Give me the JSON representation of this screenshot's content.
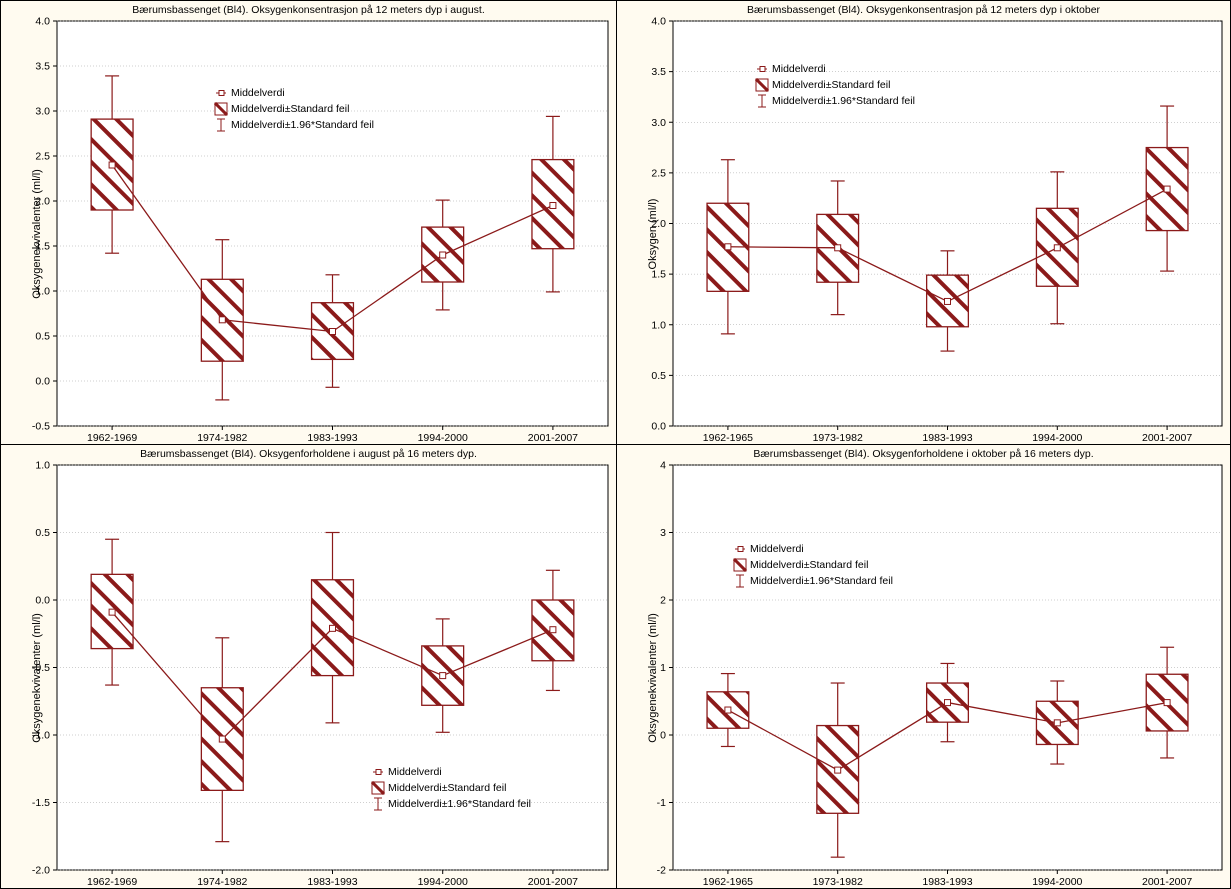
{
  "legend_labels": {
    "mean": "Middelverdi",
    "se": "Middelverdi±Standard feil",
    "ci": "Middelverdi±1.96*Standard feil"
  },
  "colors": {
    "series": "#8b1a1a",
    "panel_bg": "#fffbf0",
    "grid": "#a0a0a0"
  },
  "chart_data": [
    {
      "type": "box",
      "title": "Bærumsbassenget (Bl4). Oksygenkonsentrasjon på 12 meters dyp i august.",
      "ylabel": "Oksygenekvivalenter (ml/l)",
      "categories": [
        "1962-1969",
        "1974-1982",
        "1983-1993",
        "1994-2000",
        "2001-2007"
      ],
      "ylim": [
        -0.5,
        4.0
      ],
      "yticks": [
        "-0.5",
        "0.0",
        "0.5",
        "1.0",
        "1.5",
        "2.0",
        "2.5",
        "3.0",
        "3.5",
        "4.0"
      ],
      "mean": [
        2.4,
        0.68,
        0.55,
        1.4,
        1.95
      ],
      "se_low": [
        1.9,
        0.22,
        0.24,
        1.1,
        1.47
      ],
      "se_high": [
        2.91,
        1.13,
        0.87,
        1.71,
        2.46
      ],
      "ci_low": [
        1.42,
        -0.21,
        -0.07,
        0.79,
        0.99
      ],
      "ci_high": [
        3.39,
        1.57,
        1.18,
        2.01,
        2.94
      ],
      "legend_position": "top-center"
    },
    {
      "type": "box",
      "title": "Bærumsbassenget (Bl4). Oksygenkonsentrasjon på 12 meters dyp i oktober",
      "ylabel": "Oksygen (ml/l)",
      "categories": [
        "1962-1965",
        "1973-1982",
        "1983-1993",
        "1994-2000",
        "2001-2007"
      ],
      "ylim": [
        0.0,
        4.0
      ],
      "yticks": [
        "0.0",
        "0.5",
        "1.0",
        "1.5",
        "2.0",
        "2.5",
        "3.0",
        "3.5",
        "4.0"
      ],
      "mean": [
        1.77,
        1.76,
        1.23,
        1.76,
        2.34
      ],
      "se_low": [
        1.33,
        1.42,
        0.98,
        1.38,
        1.93
      ],
      "se_high": [
        2.2,
        2.09,
        1.49,
        2.15,
        2.75
      ],
      "ci_low": [
        0.91,
        1.1,
        0.74,
        1.01,
        1.53
      ],
      "ci_high": [
        2.63,
        2.42,
        1.73,
        2.51,
        3.16
      ],
      "legend_position": "top-left"
    },
    {
      "type": "box",
      "title": "Bærumsbassenget (Bl4). Oksygenforholdene i august på 16 meters dyp.",
      "ylabel": "Oksygenekvivalenter (ml/l)",
      "categories": [
        "1962-1969",
        "1974-1982",
        "1983-1993",
        "1994-2000",
        "2001-2007"
      ],
      "ylim": [
        -2.0,
        1.0
      ],
      "yticks": [
        "-2.0",
        "-1.5",
        "-1.0",
        "-0.5",
        "0.0",
        "0.5",
        "1.0"
      ],
      "mean": [
        -0.09,
        -1.03,
        -0.21,
        -0.56,
        -0.22
      ],
      "se_low": [
        -0.36,
        -1.41,
        -0.56,
        -0.78,
        -0.45
      ],
      "se_high": [
        0.19,
        -0.65,
        0.15,
        -0.34,
        0.0
      ],
      "ci_low": [
        -0.63,
        -1.79,
        -0.91,
        -0.98,
        -0.67
      ],
      "ci_high": [
        0.45,
        -0.28,
        0.5,
        -0.14,
        0.22
      ],
      "legend_position": "bottom-right"
    },
    {
      "type": "box",
      "title": "Bærumsbassenget (Bl4). Oksygenforholdene i oktober på 16 meters dyp.",
      "ylabel": "Oksygenekvivalenter (ml/l)",
      "categories": [
        "1962-1965",
        "1973-1982",
        "1983-1993",
        "1994-2000",
        "2001-2007"
      ],
      "ylim": [
        -2,
        4
      ],
      "yticks": [
        "-2",
        "-1",
        "0",
        "1",
        "2",
        "3",
        "4"
      ],
      "mean": [
        0.37,
        -0.52,
        0.48,
        0.18,
        0.48
      ],
      "se_low": [
        0.1,
        -1.16,
        0.19,
        -0.14,
        0.06
      ],
      "se_high": [
        0.64,
        0.14,
        0.77,
        0.5,
        0.9
      ],
      "ci_low": [
        -0.17,
        -1.81,
        -0.1,
        -0.43,
        -0.34
      ],
      "ci_high": [
        0.91,
        0.77,
        1.06,
        0.8,
        1.3
      ],
      "legend_position": "top-left"
    }
  ]
}
